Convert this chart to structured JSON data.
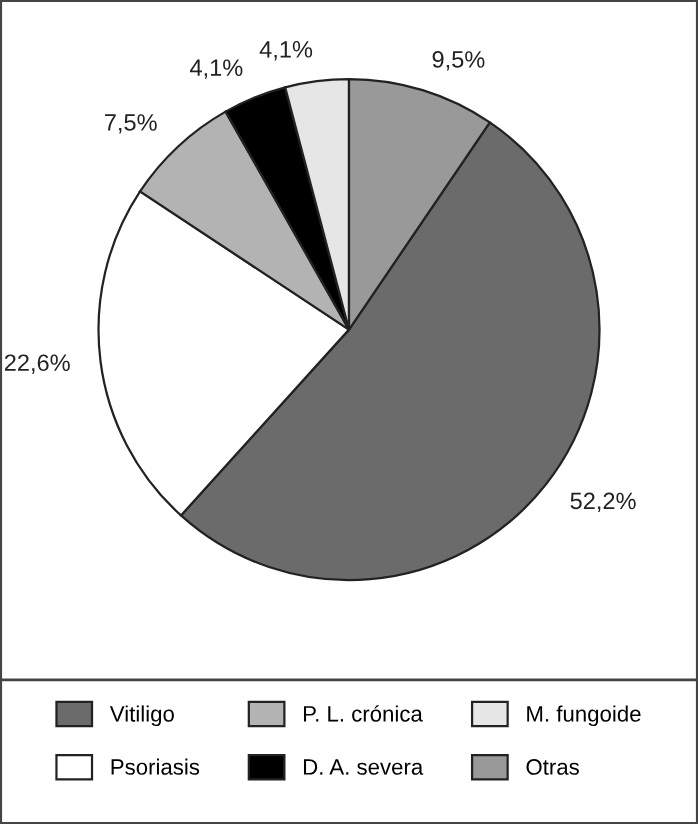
{
  "chart_data": {
    "type": "pie",
    "categories": [
      "Vitiligo",
      "Psoriasis",
      "P. L. crónica",
      "D. A. severa",
      "M. fungoide",
      "Otras"
    ],
    "values": [
      52.2,
      22.6,
      7.5,
      4.1,
      4.1,
      9.5
    ],
    "value_labels": [
      "52,2%",
      "22,6%",
      "7,5%",
      "4,1%",
      "4,1%",
      "9,5%"
    ],
    "colors": [
      "#6b6b6b",
      "#ffffff",
      "#b3b3b3",
      "#000000",
      "#e6e6e6",
      "#999999"
    ],
    "legend": "bottom"
  }
}
